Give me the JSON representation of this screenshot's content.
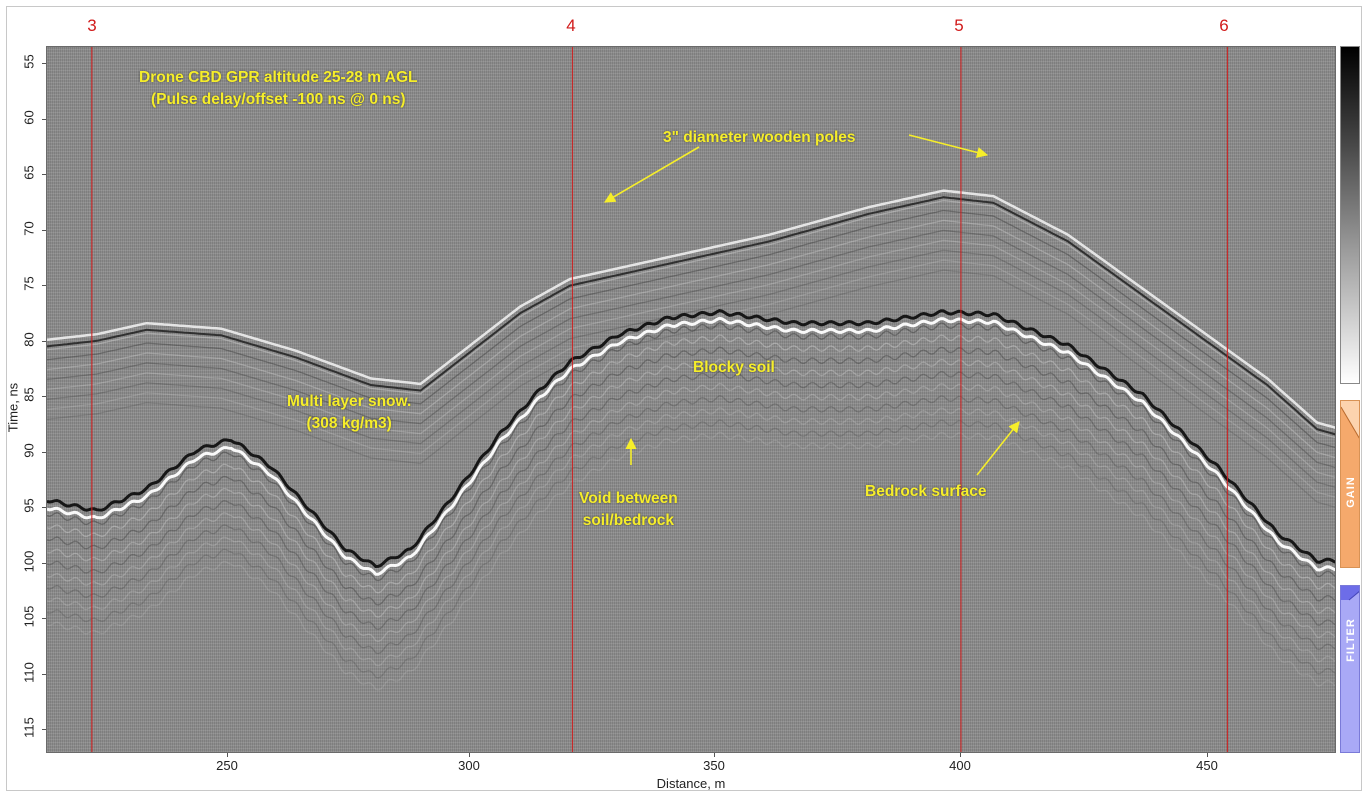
{
  "chart_data": {
    "type": "radargram",
    "ylabel": "Time, ns",
    "xlabel": "Distance, m",
    "x_ticks": [
      250,
      300,
      350,
      400,
      450
    ],
    "y_ticks": [
      55,
      60,
      65,
      70,
      75,
      80,
      85,
      90,
      95,
      100,
      105,
      110,
      115
    ],
    "xlim": [
      215,
      474
    ],
    "ylim": [
      53,
      117
    ],
    "markers": [
      {
        "label": "3",
        "x": 224
      },
      {
        "label": "4",
        "x": 320.5
      },
      {
        "label": "5",
        "x": 398.5
      },
      {
        "label": "6",
        "x": 452
      }
    ],
    "reflectors": {
      "snow_surface": [
        [
          215,
          79.5
        ],
        [
          225,
          79
        ],
        [
          235,
          78
        ],
        [
          250,
          78.5
        ],
        [
          265,
          80.5
        ],
        [
          280,
          83
        ],
        [
          290,
          83.5
        ],
        [
          300,
          80
        ],
        [
          310,
          76.5
        ],
        [
          320,
          74
        ],
        [
          340,
          72
        ],
        [
          360,
          70
        ],
        [
          380,
          67.5
        ],
        [
          395,
          66
        ],
        [
          405,
          66.5
        ],
        [
          420,
          70
        ],
        [
          440,
          76.5
        ],
        [
          460,
          83
        ],
        [
          470,
          87
        ],
        [
          474,
          87.5
        ]
      ],
      "ground_surface": [
        [
          215,
          94
        ],
        [
          225,
          95
        ],
        [
          235,
          93
        ],
        [
          245,
          89.5
        ],
        [
          252,
          88.5
        ],
        [
          260,
          91
        ],
        [
          268,
          95
        ],
        [
          275,
          98.5
        ],
        [
          281,
          100
        ],
        [
          288,
          98.5
        ],
        [
          296,
          94
        ],
        [
          306,
          88
        ],
        [
          314,
          84
        ],
        [
          320,
          81.5
        ],
        [
          330,
          79
        ],
        [
          340,
          77.5
        ],
        [
          350,
          77
        ],
        [
          365,
          78
        ],
        [
          380,
          78
        ],
        [
          395,
          77
        ],
        [
          405,
          77.2
        ],
        [
          420,
          80
        ],
        [
          435,
          84.5
        ],
        [
          450,
          91
        ],
        [
          462,
          97
        ],
        [
          470,
          99.5
        ],
        [
          474,
          99.5
        ]
      ]
    }
  },
  "markers": {
    "m3": "3",
    "m4": "4",
    "m5": "5",
    "m6": "6"
  },
  "axes": {
    "ylabel": "Time, ns",
    "xlabel": "Distance, m",
    "y": [
      "55",
      "60",
      "65",
      "70",
      "75",
      "80",
      "85",
      "90",
      "95",
      "100",
      "105",
      "110",
      "115"
    ],
    "x": [
      "250",
      "300",
      "350",
      "400",
      "450"
    ]
  },
  "annotations": {
    "title_line1": "Drone CBD GPR altitude 25-28 m AGL",
    "title_line2": "(Pulse delay/offset -100 ns @ 0 ns)",
    "poles": "3\" diameter wooden poles",
    "snow_line1": "Multi layer snow.",
    "snow_line2": "(308 kg/m3)",
    "blocky": "Blocky soil",
    "void_line1": "Void between",
    "void_line2": "soil/bedrock",
    "bedrock": "Bedrock surface"
  },
  "panels": {
    "gain": "GAIN",
    "filter": "FILTER"
  },
  "colors": {
    "annotation": "#f6ee2a",
    "marker": "#d11a1a",
    "gain_panel": "#f5a96c",
    "filter_panel": "#a9a9f6"
  }
}
